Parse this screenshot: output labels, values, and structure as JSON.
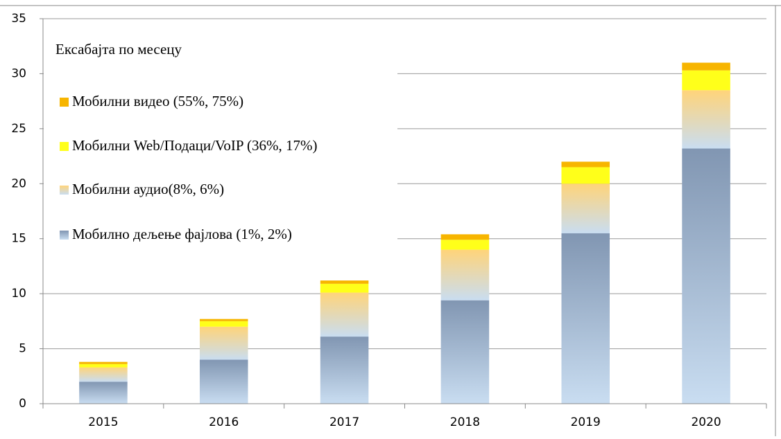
{
  "chart_data": {
    "type": "bar",
    "stacked": true,
    "title": "Ексабајта по месецу",
    "categories": [
      "2015",
      "2016",
      "2017",
      "2018",
      "2019",
      "2020"
    ],
    "series": [
      {
        "name": "Мобилно дељење фајлова (1%, 2%)",
        "color": "#8196b2",
        "gradient": true,
        "values": [
          2.0,
          4.0,
          6.1,
          9.4,
          15.5,
          23.2
        ]
      },
      {
        "name": "Мобилни аудио(8%, 6%)",
        "color": "#ffd47a",
        "gradient": true,
        "values": [
          1.3,
          3.0,
          4.0,
          4.6,
          4.5,
          5.3
        ]
      },
      {
        "name": "Мобилни Web/Подаци/VoIP (36%, 17%)",
        "color": "#ffff1a",
        "gradient": false,
        "values": [
          0.3,
          0.5,
          0.8,
          0.9,
          1.5,
          1.8
        ]
      },
      {
        "name": "Мобилни видео (55%, 75%)",
        "color": "#f7b500",
        "gradient": false,
        "values": [
          0.2,
          0.2,
          0.3,
          0.5,
          0.5,
          0.7
        ]
      }
    ],
    "ylim": [
      0,
      35
    ],
    "yticks": [
      0,
      5,
      10,
      15,
      20,
      25,
      30,
      35
    ],
    "grid": true
  }
}
